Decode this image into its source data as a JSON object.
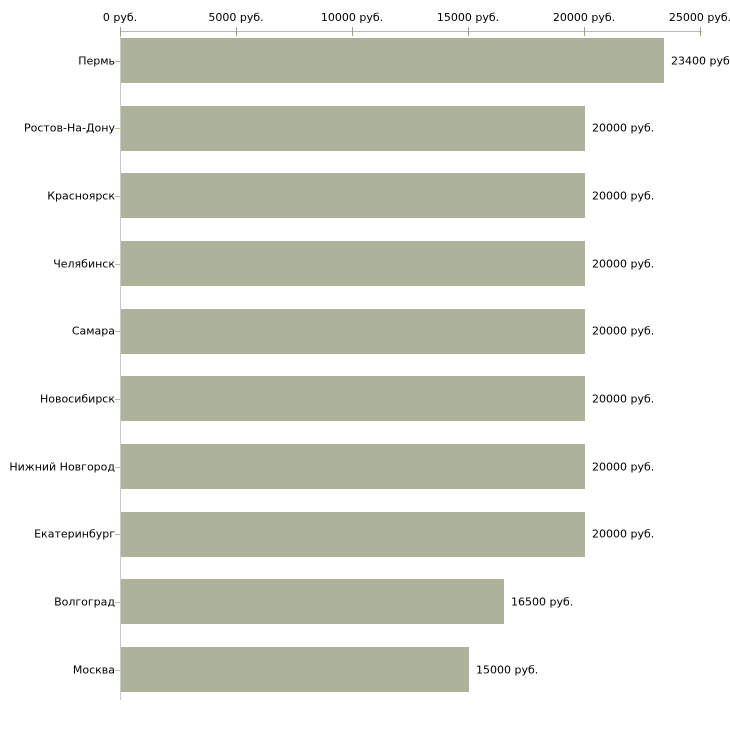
{
  "chart_data": {
    "type": "bar",
    "orientation": "horizontal",
    "title": "",
    "xlabel": "",
    "ylabel": "",
    "unit": "руб.",
    "categories": [
      "Пермь",
      "Ростов-На-Дону",
      "Красноярск",
      "Челябинск",
      "Самара",
      "Новосибирск",
      "Нижний Новгород",
      "Екатеринбург",
      "Волгоград",
      "Москва"
    ],
    "values": [
      23400,
      20000,
      20000,
      20000,
      20000,
      20000,
      20000,
      20000,
      16500,
      15000
    ],
    "value_labels": [
      "23400 руб.",
      "20000 руб.",
      "20000 руб.",
      "20000 руб.",
      "20000 руб.",
      "20000 руб.",
      "20000 руб.",
      "20000 руб.",
      "16500 руб.",
      "15000 руб."
    ],
    "x_ticks": [
      0,
      5000,
      10000,
      15000,
      20000,
      25000
    ],
    "x_tick_labels": [
      "0 руб.",
      "5000 руб.",
      "10000 руб.",
      "15000 руб.",
      "20000 руб.",
      "25000 руб."
    ],
    "xlim": [
      0,
      25000
    ],
    "grid": false,
    "legend": null,
    "axis_position": "top",
    "bar_color": "#adb39b",
    "axis_line_color": "#b9b9b9",
    "left_axis_color": "#c9c9c9",
    "tick_color": "#a5a478",
    "category_tick_color": "#bdbd9e",
    "text_color": "#000000",
    "background_color": "#ffffff"
  }
}
